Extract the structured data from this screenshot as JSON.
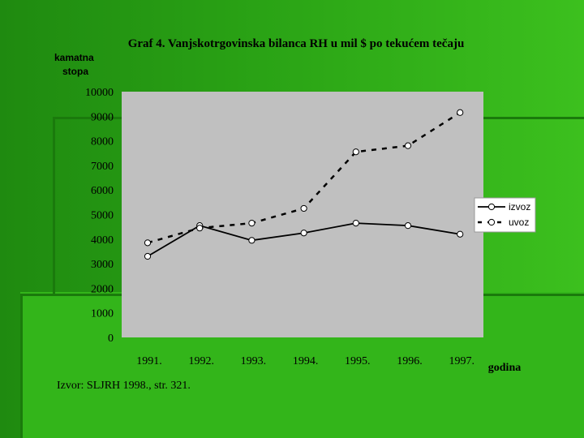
{
  "colors": {
    "background": "#2aa315",
    "plot_area": "#c0c0c0",
    "series": "#000000",
    "marker_fill": "#ffffff"
  },
  "chart_data": {
    "type": "line",
    "title": "Graf 4. Vanjskotrgovinska bilanca RH u mil $ po tekućem tečaju",
    "ylabel": "kamatna stopa",
    "xlabel": "godina",
    "categories": [
      "1991.",
      "1992.",
      "1993.",
      "1994.",
      "1995.",
      "1996.",
      "1997."
    ],
    "series": [
      {
        "name": "izvoz",
        "style": "solid",
        "values": [
          3300,
          4550,
          3950,
          4250,
          4650,
          4550,
          4200
        ]
      },
      {
        "name": "uvoz",
        "style": "dashed",
        "values": [
          3850,
          4450,
          4650,
          5250,
          7550,
          7800,
          9150
        ]
      }
    ],
    "ylim": [
      0,
      10000
    ],
    "yticks": [
      "0",
      "1000",
      "2000",
      "3000",
      "4000",
      "5000",
      "6000",
      "7000",
      "8000",
      "9000",
      "10000"
    ],
    "grid": false,
    "legend": "right",
    "source": "Izvor: SLJRH 1998., str. 321."
  }
}
